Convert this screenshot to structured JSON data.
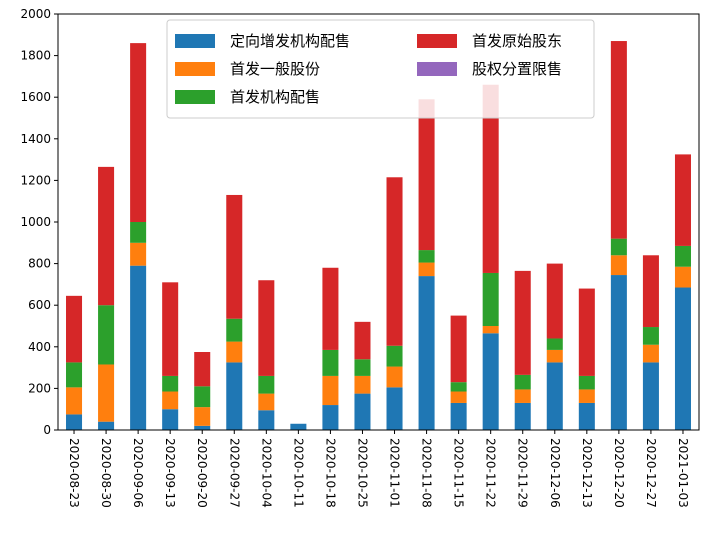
{
  "chart_data": {
    "type": "bar",
    "stacked": true,
    "title": "",
    "xlabel": "",
    "ylabel": "",
    "ylim": [
      0,
      2000
    ],
    "yticks": [
      0,
      200,
      400,
      600,
      800,
      1000,
      1200,
      1400,
      1600,
      1800,
      2000
    ],
    "grid": false,
    "legend_position": "top-center",
    "categories": [
      "2020-08-23",
      "2020-08-30",
      "2020-09-06",
      "2020-09-13",
      "2020-09-20",
      "2020-09-27",
      "2020-10-04",
      "2020-10-11",
      "2020-10-18",
      "2020-10-25",
      "2020-11-01",
      "2020-11-08",
      "2020-11-15",
      "2020-11-22",
      "2020-11-29",
      "2020-12-06",
      "2020-12-13",
      "2020-12-20",
      "2020-12-27",
      "2021-01-03"
    ],
    "series": [
      {
        "name": "定向增发机构配售",
        "color": "#1f77b4",
        "values": [
          75,
          40,
          790,
          100,
          20,
          325,
          95,
          30,
          120,
          175,
          205,
          740,
          130,
          465,
          130,
          325,
          130,
          745,
          325,
          685
        ]
      },
      {
        "name": "首发一般股份",
        "color": "#ff7f0e",
        "values": [
          130,
          275,
          110,
          85,
          90,
          100,
          80,
          0,
          140,
          85,
          100,
          65,
          55,
          35,
          65,
          60,
          65,
          95,
          85,
          100
        ]
      },
      {
        "name": "首发机构配售",
        "color": "#2ca02c",
        "values": [
          120,
          285,
          100,
          75,
          100,
          110,
          85,
          0,
          125,
          80,
          100,
          60,
          45,
          255,
          70,
          55,
          65,
          80,
          85,
          100
        ]
      },
      {
        "name": "首发原始股东",
        "color": "#d62728",
        "values": [
          320,
          665,
          860,
          450,
          165,
          595,
          460,
          0,
          395,
          180,
          810,
          725,
          320,
          905,
          500,
          360,
          420,
          950,
          345,
          440
        ]
      },
      {
        "name": "股权分置限售",
        "color": "#9467bd",
        "values": [
          0,
          0,
          0,
          0,
          0,
          0,
          0,
          0,
          0,
          0,
          0,
          0,
          0,
          0,
          0,
          0,
          0,
          0,
          0,
          0
        ]
      }
    ]
  }
}
